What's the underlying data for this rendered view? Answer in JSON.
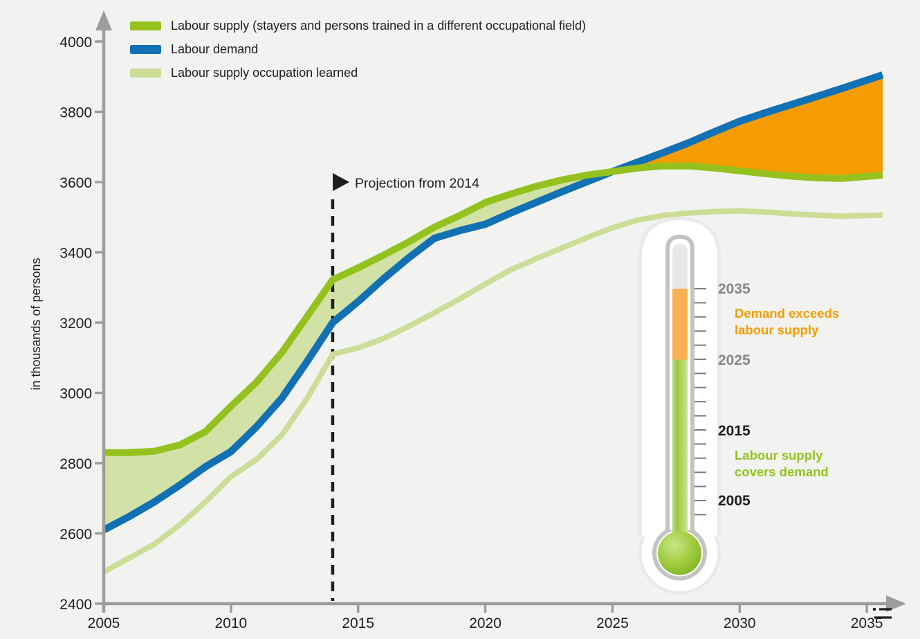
{
  "colors": {
    "background": "#F2F2F0",
    "text": "#1D1D1B",
    "axis_gray": "#9D9D9C",
    "muted_gray": "#878787",
    "supply_green": "#95C11F",
    "demand_blue": "#1270B5",
    "learned_green": "#CBDD97",
    "supply_surplus_fill": "#D2E2A6",
    "demand_excess_fill": "#F59C00",
    "thermo_tube_orange": "#F8B052",
    "thermo_tube_empty": "#E7E7E6",
    "thermo_border": "#C3C3C2",
    "thermo_halo": "#E9E9E8"
  },
  "legend": {
    "items": [
      {
        "label": "Labour supply (stayers and persons trained in a different occupational field)",
        "color": "#95C11F"
      },
      {
        "label": "Labour demand",
        "color": "#1270B5"
      },
      {
        "label": "Labour supply occupation learned",
        "color": "#CBDD97"
      }
    ]
  },
  "chart_data": {
    "type": "line",
    "title": "",
    "ylabel": "in thousands of persons",
    "xlabel": "",
    "ylim": [
      2400,
      4000
    ],
    "xlim": [
      2005,
      2035
    ],
    "grid": false,
    "legend_position": "top-left",
    "y_ticks": [
      4000,
      3800,
      3600,
      3400,
      3200,
      3000,
      2800,
      2600,
      2400
    ],
    "x_ticks": [
      2005,
      2010,
      2015,
      2020,
      2025,
      2030,
      2035
    ],
    "x": [
      2005,
      2006,
      2007,
      2008,
      2009,
      2010,
      2011,
      2012,
      2013,
      2014,
      2015,
      2016,
      2017,
      2018,
      2019,
      2020,
      2021,
      2022,
      2023,
      2024,
      2025,
      2026,
      2027,
      2028,
      2029,
      2030,
      2031,
      2032,
      2033,
      2034,
      2035
    ],
    "series": [
      {
        "key": "supply",
        "name": "Labour supply (stayers and persons trained in a different occupational field)",
        "color": "#95C11F",
        "line_width": 10,
        "values": [
          2830,
          2830,
          2834,
          2852,
          2890,
          2962,
          3030,
          3115,
          3218,
          3322,
          3356,
          3392,
          3430,
          3472,
          3505,
          3542,
          3566,
          3588,
          3606,
          3620,
          3630,
          3640,
          3646,
          3646,
          3640,
          3632,
          3624,
          3617,
          3612,
          3610,
          3616
        ]
      },
      {
        "key": "demand",
        "name": "Labour demand",
        "color": "#1270B5",
        "line_width": 10.5,
        "values": [
          2610,
          2648,
          2690,
          2738,
          2790,
          2833,
          2903,
          2985,
          3090,
          3200,
          3260,
          3325,
          3385,
          3440,
          3462,
          3480,
          3512,
          3542,
          3572,
          3601,
          3630,
          3657,
          3684,
          3712,
          3743,
          3773,
          3797,
          3820,
          3843,
          3866,
          3890
        ]
      },
      {
        "key": "learned",
        "name": "Labour supply occupation learned",
        "color": "#CBDD97",
        "line_width": 8,
        "values": [
          2490,
          2530,
          2570,
          2625,
          2690,
          2762,
          2810,
          2880,
          2985,
          3110,
          3128,
          3155,
          3190,
          3228,
          3268,
          3310,
          3350,
          3382,
          3412,
          3442,
          3470,
          3492,
          3505,
          3512,
          3516,
          3518,
          3515,
          3510,
          3506,
          3503,
          3505
        ]
      }
    ],
    "shaded_regions": [
      {
        "key": "supply_surplus",
        "label": "Labour supply covers demand",
        "between": [
          "supply",
          "demand"
        ],
        "from": 2005,
        "to": 2025,
        "color": "#D2E2A6"
      },
      {
        "key": "demand_excess",
        "label": "Demand exceeds labour supply",
        "between": [
          "demand",
          "supply"
        ],
        "from": 2025,
        "to": 2035,
        "color": "#F59C00"
      }
    ],
    "projection": {
      "year": 2014,
      "label": "Projection from 2014"
    }
  },
  "thermometer": {
    "scale_labels": [
      {
        "text": "2035",
        "color": "#878787"
      },
      {
        "text": "2025",
        "color": "#878787"
      },
      {
        "text": "2015",
        "color": "#1D1D1B"
      },
      {
        "text": "2005",
        "color": "#1D1D1B"
      }
    ],
    "zones": [
      {
        "line1": "Demand exceeds",
        "line2": "labour supply",
        "color": "#F59C00"
      },
      {
        "line1": "Labour supply",
        "line2": "covers demand",
        "color": "#95C11F"
      }
    ]
  }
}
